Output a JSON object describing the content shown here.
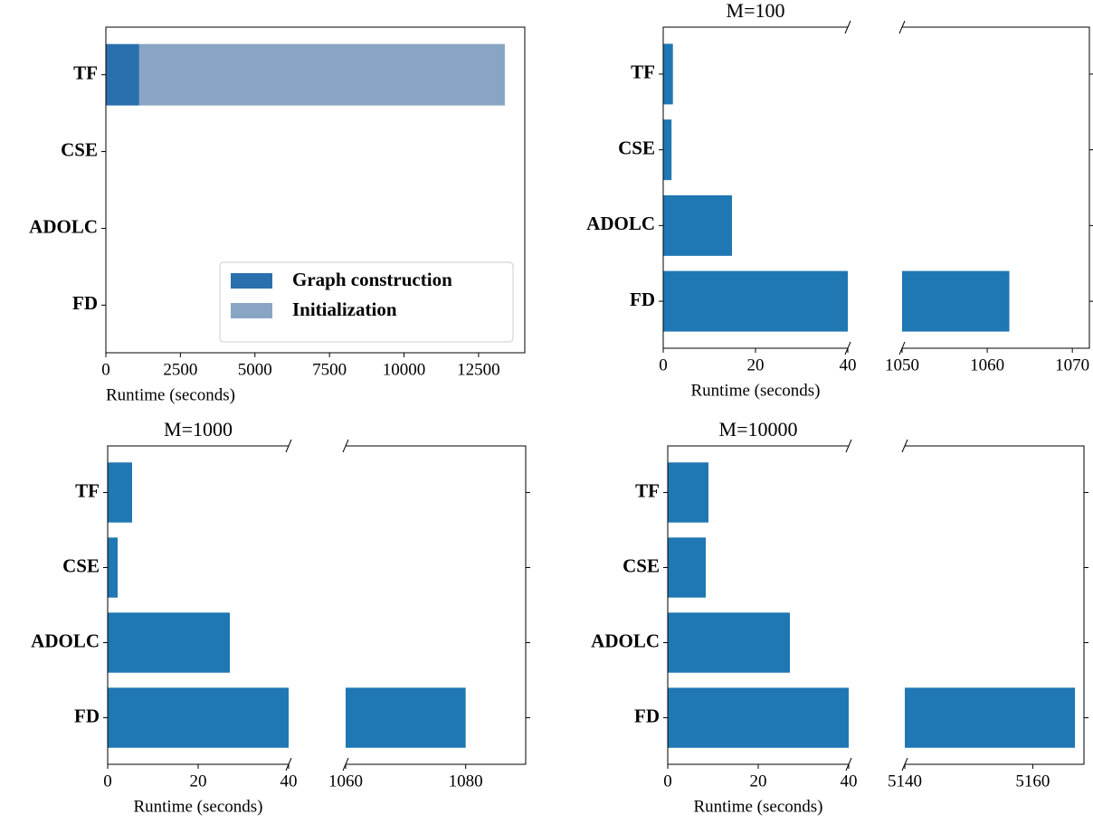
{
  "chart_data": [
    {
      "type": "bar",
      "orientation": "horizontal",
      "stacked": true,
      "categories": [
        "TF",
        "CSE",
        "ADOLC",
        "FD"
      ],
      "series": [
        {
          "name": "Graph construction",
          "color": "#2a70ad",
          "values": [
            1120,
            0,
            0,
            0
          ]
        },
        {
          "name": "Initialization",
          "color": "#88a5c4",
          "values": [
            12260,
            0,
            0,
            0
          ]
        }
      ],
      "xlim": [
        0,
        14050
      ],
      "xticks": [
        0,
        2500,
        5000,
        7500,
        10000,
        12500
      ],
      "xlabel": "Runtime (seconds)",
      "legend": "lower right"
    },
    {
      "type": "bar",
      "orientation": "horizontal",
      "title": "M=100",
      "categories": [
        "TF",
        "CSE",
        "ADOLC",
        "FD"
      ],
      "values": [
        2.1,
        1.8,
        14.9,
        1062.6
      ],
      "color": "#1f77b4",
      "xlim": [
        0,
        40
      ],
      "xticks": [
        0,
        20,
        40
      ],
      "x2lim": [
        1050,
        1072
      ],
      "x2ticks": [
        1050,
        1060,
        1070
      ],
      "xlabel": "Runtime (seconds)"
    },
    {
      "type": "bar",
      "orientation": "horizontal",
      "title": "M=1000",
      "categories": [
        "TF",
        "CSE",
        "ADOLC",
        "FD"
      ],
      "values": [
        5.4,
        2.2,
        27,
        1080
      ],
      "color": "#1f77b4",
      "xlim": [
        0,
        40
      ],
      "xticks": [
        0,
        20,
        40
      ],
      "x2lim": [
        1060,
        1090
      ],
      "x2ticks": [
        1060,
        1080
      ],
      "xlabel": "Runtime (seconds)"
    },
    {
      "type": "bar",
      "orientation": "horizontal",
      "title": "M=10000",
      "categories": [
        "TF",
        "CSE",
        "ADOLC",
        "FD"
      ],
      "values": [
        9,
        8.4,
        27,
        5166.6
      ],
      "color": "#1f77b4",
      "xlim": [
        0,
        40
      ],
      "xticks": [
        0,
        20,
        40
      ],
      "x2lim": [
        5140,
        5168
      ],
      "x2ticks": [
        5140,
        5160
      ],
      "xlabel": "Runtime (seconds)"
    }
  ]
}
